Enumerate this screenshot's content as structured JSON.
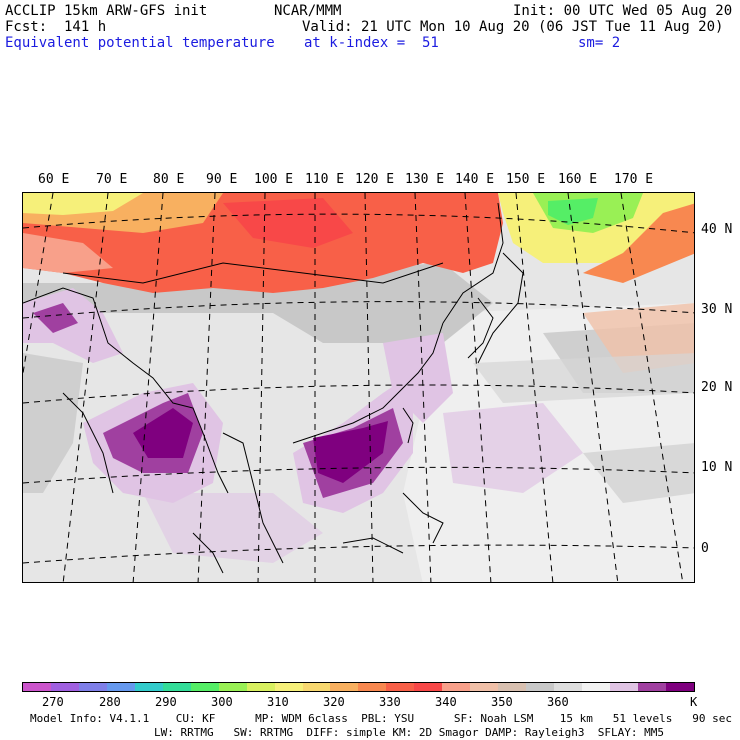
{
  "header": {
    "model_line": "ACCLIP 15km ARW-GFS init",
    "org": "NCAR/MMM",
    "init": "Init: 00 UTC Wed 05 Aug 20",
    "fcst": "Fcst:  141 h",
    "valid": "Valid: 21 UTC Mon 10 Aug 20 (06 JST Tue 11 Aug 20)",
    "field": "Equivalent potential temperature",
    "level": "at k-index =  51",
    "smooth": "sm= 2"
  },
  "map": {
    "lon_labels": [
      "60 E",
      "70 E",
      "80 E",
      "90 E",
      "100 E",
      "110 E",
      "120 E",
      "130 E",
      "140 E",
      "150 E",
      "160 E",
      "170 E"
    ],
    "lat_labels": [
      "40 N",
      "30 N",
      "20 N",
      "10 N",
      "0"
    ]
  },
  "colorbar": {
    "unit": "K",
    "tick_labels": [
      "270",
      "280",
      "290",
      "300",
      "310",
      "320",
      "330",
      "340",
      "350",
      "360"
    ],
    "colors": [
      "#cc55cc",
      "#a060e0",
      "#7f7fe8",
      "#6699ee",
      "#33cccc",
      "#33dd99",
      "#55ee66",
      "#99f055",
      "#d8f060",
      "#f6f07a",
      "#f8d870",
      "#f8b060",
      "#f88850",
      "#f86048",
      "#f84848",
      "#f8a08a",
      "#f0c0a8",
      "#d8c0b0",
      "#c8c8c8",
      "#dedede",
      "#f2f2f2",
      "#e0c4e4",
      "#a040a0",
      "#7f007f"
    ]
  },
  "footer": {
    "line1": "Model Info: V4.1.1    CU: KF      MP: WDM 6class  PBL: YSU      SF: Noah LSM    15 km   51 levels   90 sec",
    "line2": "LW: RRTMG   SW: RRTMG  DIFF: simple KM: 2D Smagor DAMP: Rayleigh3  SFLAY: MM5"
  }
}
